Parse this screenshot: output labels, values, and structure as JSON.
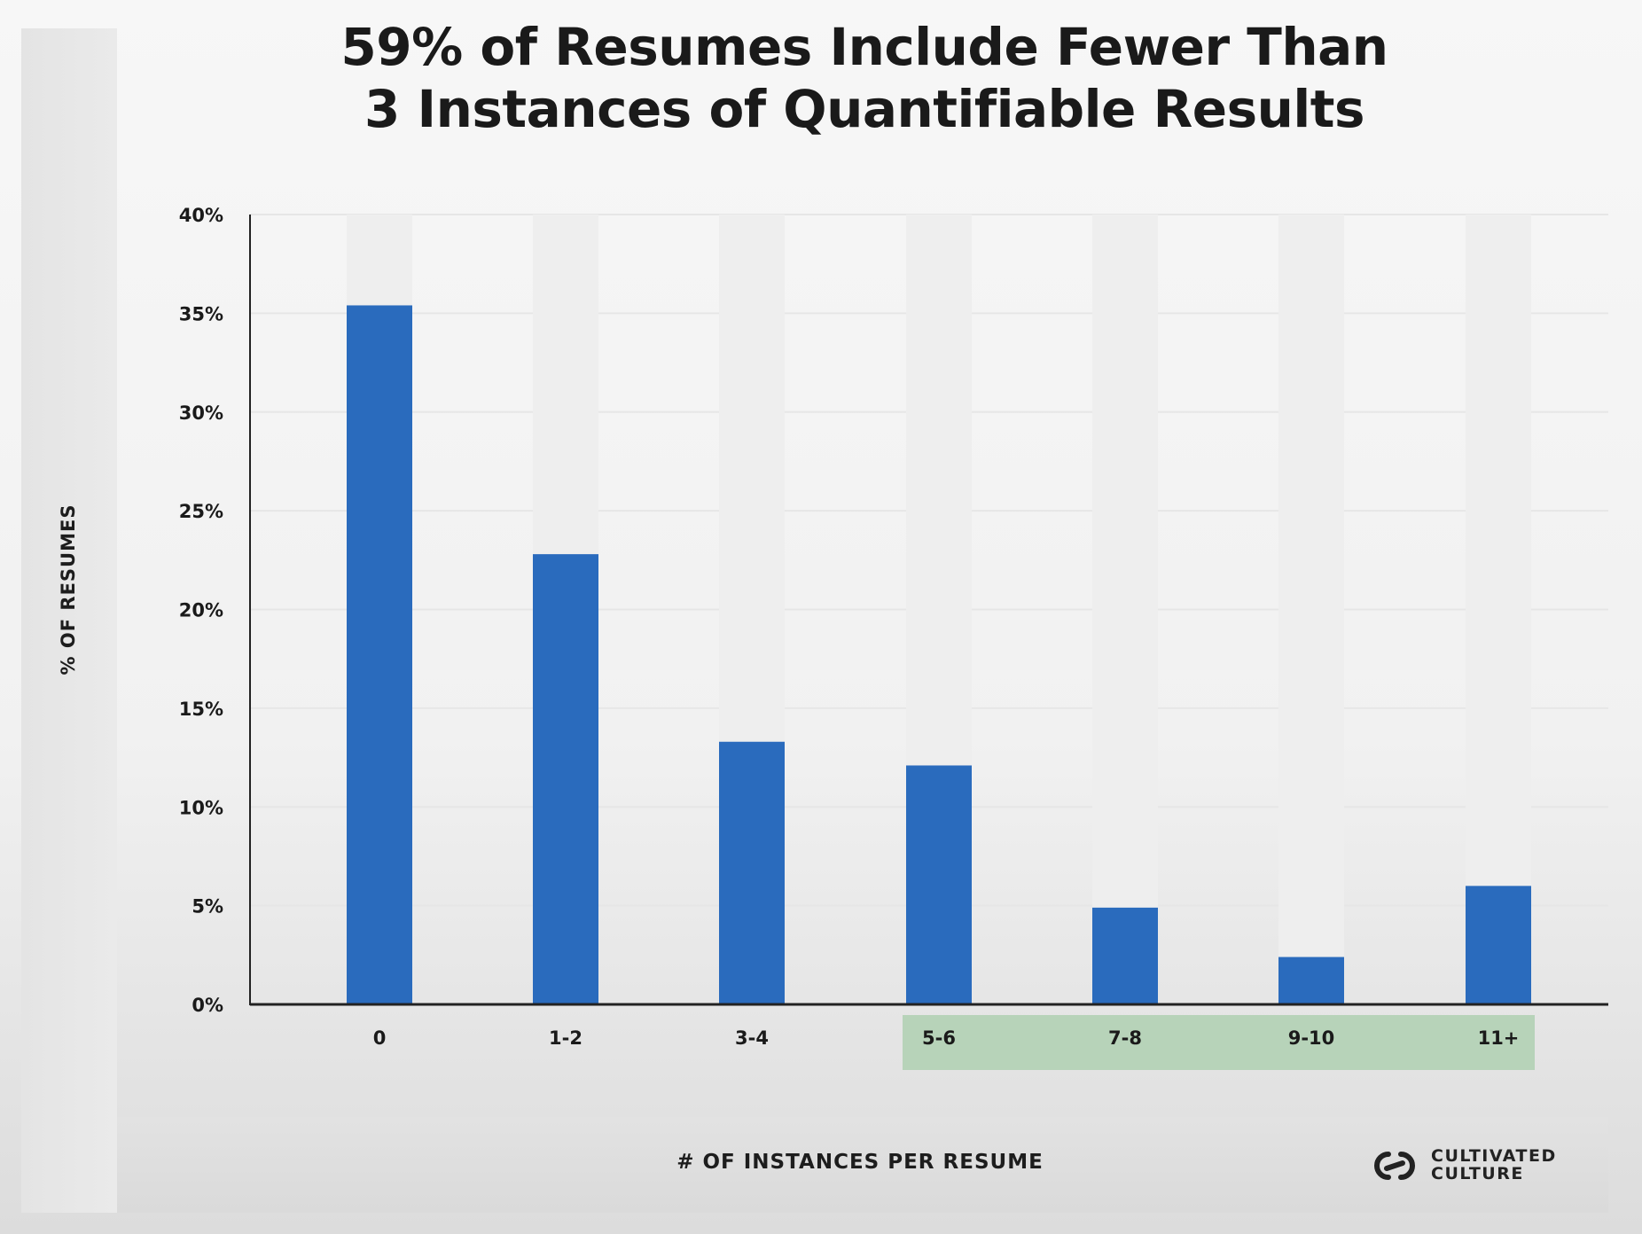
{
  "chart_data": {
    "type": "bar",
    "title": "59% of Resumes Include Fewer Than 3 Instances of Quantifiable Results",
    "title_lines": [
      "59% of Resumes Include Fewer Than",
      "3 Instances of Quantifiable Results"
    ],
    "xlabel": "# OF INSTANCES PER RESUME",
    "ylabel": "% OF RESUMES",
    "categories": [
      "0",
      "1-2",
      "3-4",
      "5-6",
      "7-8",
      "9-10",
      "11+"
    ],
    "values": [
      35.4,
      22.8,
      13.3,
      12.1,
      4.9,
      2.4,
      6.0
    ],
    "ylim": [
      0,
      40
    ],
    "yticks": [
      0,
      5,
      10,
      15,
      20,
      25,
      30,
      35,
      40
    ],
    "ytick_labels": [
      "0%",
      "5%",
      "10%",
      "15%",
      "20%",
      "25%",
      "30%",
      "35%",
      "40%"
    ],
    "highlighted_categories": [
      "5-6",
      "7-8",
      "9-10",
      "11+"
    ],
    "grid": true,
    "legend": "none"
  },
  "colors": {
    "bar": "#2a6bbd",
    "bar_track": "#eeeeee",
    "highlight": "#b7d3b9",
    "axis": "#222222",
    "text": "#1a1a1a"
  },
  "brand": {
    "line1": "CULTIVATED",
    "line2": "CULTURE",
    "icon": "chain-link-icon"
  }
}
